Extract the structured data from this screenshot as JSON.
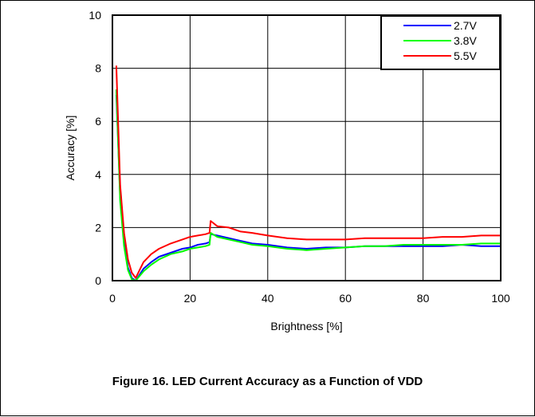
{
  "caption": "Figure 16. LED Current Accuracy as a Function of VDD",
  "chart_data": {
    "type": "line",
    "title": "",
    "xlabel": "Brightness [%]",
    "ylabel": "Accuracy [%]",
    "xlim": [
      0,
      100
    ],
    "ylim": [
      0,
      10
    ],
    "xticks": [
      0,
      20,
      40,
      60,
      80,
      100
    ],
    "yticks": [
      0,
      2,
      4,
      6,
      8,
      10
    ],
    "grid": true,
    "legend_position": "top-right",
    "series": [
      {
        "name": "2.7V",
        "color": "#0000ff",
        "x": [
          1,
          2,
          3,
          4,
          5,
          6,
          8,
          10,
          12,
          15,
          18,
          20,
          22,
          24,
          25,
          25.3,
          27,
          30,
          33,
          36,
          40,
          45,
          50,
          55,
          60,
          65,
          70,
          75,
          80,
          85,
          90,
          95,
          100
        ],
        "y": [
          7.0,
          3.2,
          1.5,
          0.5,
          0.1,
          0.0,
          0.45,
          0.7,
          0.9,
          1.05,
          1.2,
          1.25,
          1.35,
          1.4,
          1.45,
          1.75,
          1.7,
          1.6,
          1.5,
          1.4,
          1.35,
          1.25,
          1.2,
          1.25,
          1.25,
          1.3,
          1.3,
          1.3,
          1.3,
          1.3,
          1.35,
          1.3,
          1.3
        ]
      },
      {
        "name": "3.8V",
        "color": "#00ff00",
        "x": [
          1,
          2,
          3,
          4,
          5,
          6,
          8,
          10,
          12,
          15,
          18,
          20,
          22,
          24,
          25,
          25.3,
          27,
          30,
          33,
          36,
          40,
          45,
          50,
          55,
          60,
          65,
          70,
          75,
          80,
          85,
          90,
          95,
          100
        ],
        "y": [
          7.2,
          3.0,
          1.3,
          0.4,
          0.05,
          0.0,
          0.35,
          0.6,
          0.8,
          1.0,
          1.1,
          1.2,
          1.25,
          1.3,
          1.35,
          1.8,
          1.65,
          1.55,
          1.45,
          1.35,
          1.3,
          1.2,
          1.15,
          1.2,
          1.25,
          1.3,
          1.3,
          1.35,
          1.35,
          1.35,
          1.35,
          1.4,
          1.4
        ]
      },
      {
        "name": "5.5V",
        "color": "#ff0000",
        "x": [
          1,
          2,
          3,
          4,
          5,
          6,
          8,
          10,
          12,
          15,
          18,
          20,
          22,
          24,
          25,
          25.3,
          27,
          30,
          33,
          36,
          40,
          45,
          50,
          55,
          60,
          65,
          70,
          75,
          80,
          85,
          90,
          95,
          100
        ],
        "y": [
          8.1,
          3.6,
          1.8,
          0.8,
          0.3,
          0.1,
          0.7,
          1.0,
          1.2,
          1.4,
          1.55,
          1.65,
          1.7,
          1.75,
          1.8,
          2.25,
          2.05,
          2.0,
          1.85,
          1.8,
          1.7,
          1.6,
          1.55,
          1.55,
          1.55,
          1.6,
          1.6,
          1.6,
          1.6,
          1.65,
          1.65,
          1.7,
          1.7
        ]
      }
    ]
  }
}
